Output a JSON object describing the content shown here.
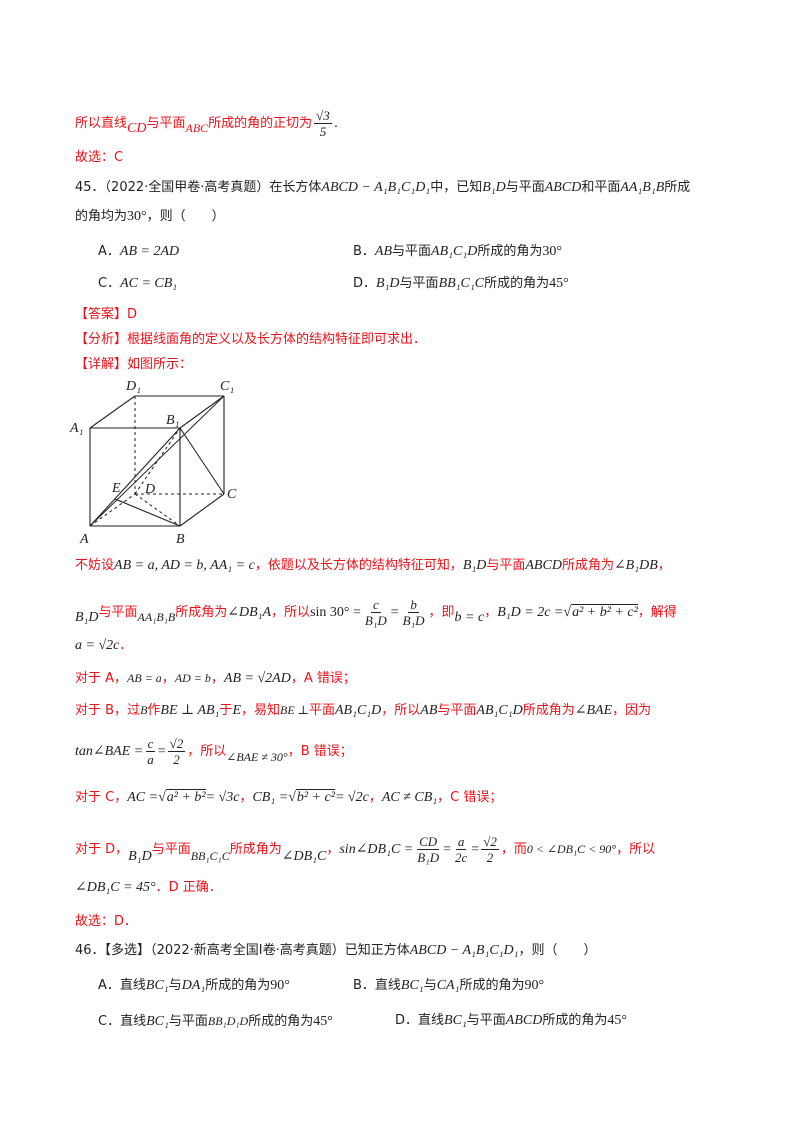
{
  "top": {
    "line1_a": "所以直线",
    "line1_cd": "CD",
    "line1_b": "与平面",
    "line1_abc": "ABC",
    "line1_c": "所成的角的正切为",
    "line1_num": "√3",
    "line1_den": "5",
    "line1_end": ".",
    "choose_c": "故选：C"
  },
  "q45": {
    "num": "45．",
    "source": "（2022·全国甲卷·高考真题）在长方体",
    "solid": "ABCD − A₁B₁C₁D₁",
    "stem_a": "中，已知",
    "b1d": "B₁D",
    "stem_b": "与平面",
    "abcd": "ABCD",
    "stem_c": "和平面",
    "aa1b1b": "AA₁B₁B",
    "stem_d": "所成",
    "line2_a": "的角均为",
    "angle30": "30°",
    "line2_b": "，则（　　）",
    "optA_label": "A．",
    "optA": "AB = 2AD",
    "optB_label": "B．",
    "optB_a": "AB",
    "optB_b": "与平面",
    "optB_c": "AB₁C₁D",
    "optB_d": "所成的角为",
    "optB_e": "30°",
    "optC_label": "C．",
    "optC": "AC = CB₁",
    "optD_label": "D．",
    "optD_a": "B₁D",
    "optD_b": "与平面",
    "optD_c": "BB₁C₁C",
    "optD_d": "所成的角为",
    "optD_e": "45°",
    "answer": "【答案】D",
    "analysis": "【分析】根据线面角的定义以及长方体的结构特征即可求出．",
    "detail": "【详解】如图所示："
  },
  "figure": {
    "labels": [
      "D₁",
      "C₁",
      "B₁",
      "A₁",
      "E",
      "D",
      "C",
      "A",
      "B"
    ]
  },
  "solution": {
    "s1_a": "不妨设",
    "s1_b": "AB = a, AD = b, AA₁ = c",
    "s1_c": "，依题以及长方体的结构特征可知，",
    "s1_d": "B₁D",
    "s1_e": "与平面",
    "s1_f": "ABCD",
    "s1_g": "所成角为",
    "s1_h": "∠B₁DB",
    "s1_i": "，",
    "s2_a": "B₁D",
    "s2_b": "与平面",
    "s2_c": "AA₁B₁B",
    "s2_d": "所成角为",
    "s2_e": "∠DB₁A",
    "s2_f": "，所以",
    "s2_g": "sin 30° =",
    "s2_fr1_num": "c",
    "s2_fr1_den": "B₁D",
    "s2_eq": "=",
    "s2_fr2_num": "b",
    "s2_fr2_den": "B₁D",
    "s2_h": "，即",
    "s2_i": "b = c",
    "s2_j": "，",
    "s2_k": "B₁D = 2c =",
    "s2_sqrt": "a² + b² + c²",
    "s2_l": "，解得",
    "s3": "a = √2c",
    "s3_end": "．",
    "a_line_a": "对于 A，",
    "a_line_b": "AB = a",
    "a_line_c": "，",
    "a_line_d": "AD = b",
    "a_line_e": "，",
    "a_line_f": "AB = √2AD",
    "a_line_g": "，A 错误；",
    "b_line_a": "对于 B，过",
    "b_line_b": "B",
    "b_line_c": "作",
    "b_line_d": "BE ⊥ AB₁",
    "b_line_e": "于",
    "b_line_f": "E",
    "b_line_g": "，易知",
    "b_line_h": "BE ⊥",
    "b_line_i": "平面",
    "b_line_j": "AB₁C₁D",
    "b_line_k": "，所以",
    "b_line_l": "AB",
    "b_line_m": "与平面",
    "b_line_n": "AB₁C₁D",
    "b_line_o": "所成角为",
    "b_line_p": "∠BAE",
    "b_line_q": "，因为",
    "b2_a": "tan∠BAE =",
    "b2_fr1_num": "c",
    "b2_fr1_den": "a",
    "b2_eq": "=",
    "b2_fr2_num": "√2",
    "b2_fr2_den": "2",
    "b2_b": "，所以",
    "b2_c": "∠BAE ≠ 30°",
    "b2_d": "，B 错误；",
    "c_line_a": "对于 C，",
    "c_line_b": "AC =",
    "c_line_sqrt": "a² + b²",
    "c_line_c": "= √3c",
    "c_line_d": "，",
    "c_line_e": "CB₁ =",
    "c_line_sqrt2": "b² + c²",
    "c_line_f": "= √2c",
    "c_line_g": "，",
    "c_line_h": "AC ≠ CB₁",
    "c_line_i": "，C 错误；",
    "d_line_a": "对于 D，",
    "d_line_b": "B₁D",
    "d_line_c": "与平面",
    "d_line_d": "BB₁C₁C",
    "d_line_e": "所成角为",
    "d_line_f": "∠DB₁C",
    "d_line_g": "，",
    "d_line_h": "sin∠DB₁C =",
    "d_fr1_num": "CD",
    "d_fr1_den": "B₁D",
    "d_eq1": "=",
    "d_fr2_num": "a",
    "d_fr2_den": "2c",
    "d_eq2": "=",
    "d_fr3_num": "√2",
    "d_fr3_den": "2",
    "d_line_i": "，而",
    "d_line_j": "0 < ∠DB₁C < 90°",
    "d_line_k": "，所以",
    "d2_a": "∠DB₁C = 45°",
    "d2_b": "．D 正确．",
    "choose_d": "故选：D．"
  },
  "q46": {
    "num": "46．",
    "tag": "【多选】",
    "source": "（2022·新高考全国Ⅰ卷·高考真题）已知正方体",
    "solid": "ABCD − A₁B₁C₁D₁",
    "end": "，则（　　）",
    "optA_label": "A．直线",
    "optA_a": "BC₁",
    "optA_b": "与",
    "optA_c": "DA₁",
    "optA_d": "所成的角为",
    "optA_e": "90°",
    "optB_label": "B．直线",
    "optB_a": "BC₁",
    "optB_b": "与",
    "optB_c": "CA₁",
    "optB_d": "所成的角为",
    "optB_e": "90°",
    "optC_label": "C．直线",
    "optC_a": "BC₁",
    "optC_b": "与平面",
    "optC_c": "BB₁D₁D",
    "optC_d": "所成的角为",
    "optC_e": "45°",
    "optD_label": "D．直线",
    "optD_a": "BC₁",
    "optD_b": "与平面",
    "optD_c": "ABCD",
    "optD_d": "所成的角为",
    "optD_e": "45°"
  }
}
